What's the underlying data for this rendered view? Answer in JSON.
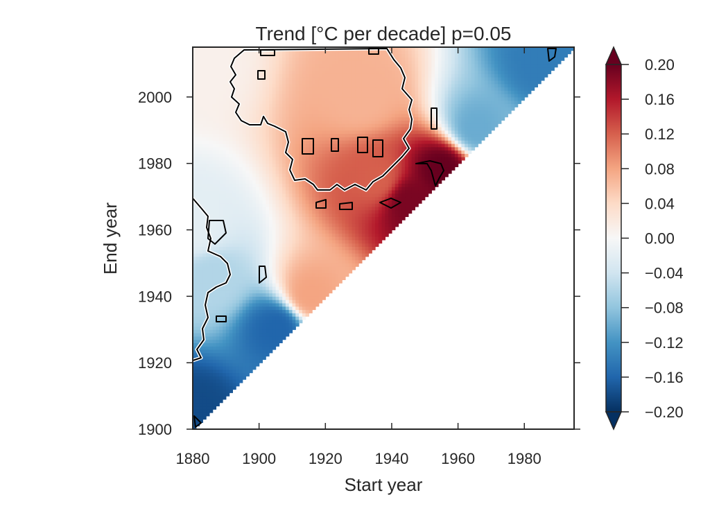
{
  "chart_data": {
    "type": "heatmap",
    "title": "Trend [°C per decade] p=0.05",
    "xlabel": "Start year",
    "ylabel": "End year",
    "xlim": [
      1880,
      1995
    ],
    "ylim": [
      1900,
      2015
    ],
    "xticks": [
      1880,
      1900,
      1920,
      1940,
      1960,
      1980
    ],
    "yticks": [
      1900,
      1920,
      1940,
      1960,
      1980,
      2000
    ],
    "cell_size_years": 1,
    "valid_region": "end year >= start year + 20 (upper-left triangle)",
    "colormap": "RdBu_r",
    "colorbar": {
      "min": -0.2,
      "max": 0.2,
      "extend": "both",
      "ticks": [
        "0.20",
        "0.16",
        "0.12",
        "0.08",
        "0.04",
        "0.00",
        "−0.04",
        "−0.08",
        "−0.12",
        "−0.16",
        "−0.20"
      ]
    },
    "significance_contour": "black line with white halo encloses trends significant at p=0.05",
    "approx_values": [
      {
        "start": 1880,
        "end": 1905,
        "value": -0.18
      },
      {
        "start": 1905,
        "end": 1930,
        "value": -0.16
      },
      {
        "start": 1885,
        "end": 1945,
        "value": -0.06
      },
      {
        "start": 1880,
        "end": 1960,
        "value": -0.02
      },
      {
        "start": 1880,
        "end": 2010,
        "value": 0.01
      },
      {
        "start": 1930,
        "end": 2000,
        "value": 0.07
      },
      {
        "start": 1935,
        "end": 1975,
        "value": 0.12
      },
      {
        "start": 1945,
        "end": 1968,
        "value": 0.19
      },
      {
        "start": 1955,
        "end": 1978,
        "value": 0.2
      },
      {
        "start": 1965,
        "end": 1990,
        "value": -0.1
      },
      {
        "start": 1985,
        "end": 2010,
        "value": -0.14
      },
      {
        "start": 1915,
        "end": 1940,
        "value": 0.08
      }
    ]
  }
}
